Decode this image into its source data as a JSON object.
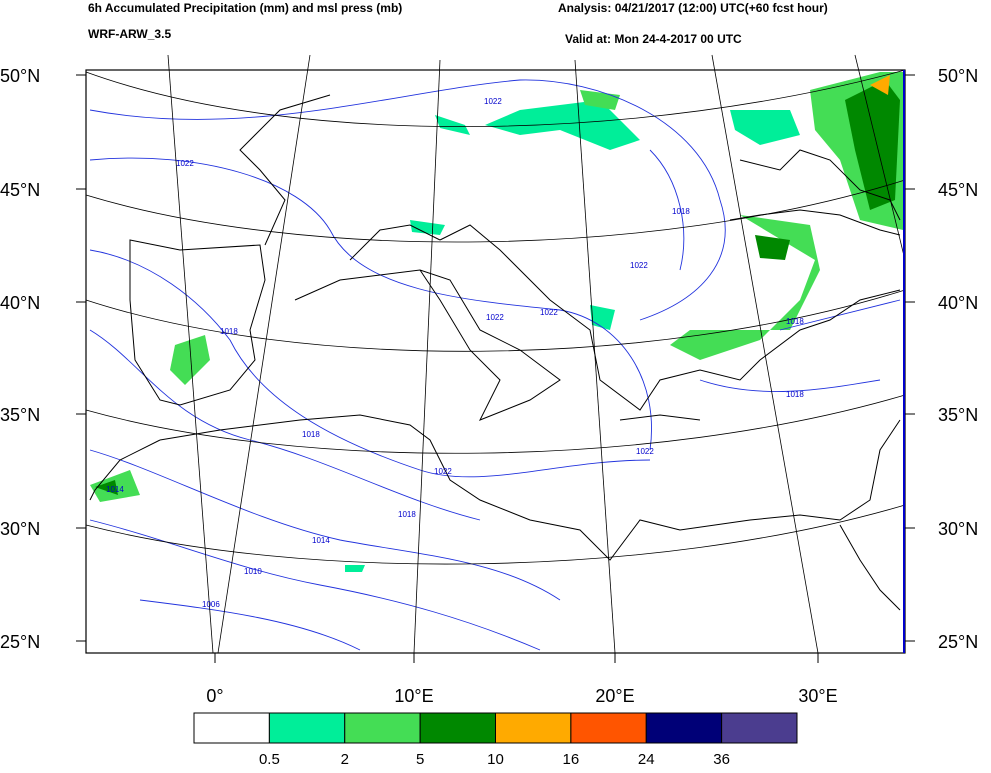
{
  "header": {
    "title": "6h Accumulated Precipitation (mm) and msl press (mb)",
    "model": "WRF-ARW_3.5",
    "analysis": "Analysis: 04/21/2017 (12:00) UTC(+60 fcst hour)",
    "valid": "Valid at: Mon 24-4-2017 00 UTC"
  },
  "map": {
    "lat_labels": [
      "50°N",
      "45°N",
      "40°N",
      "35°N",
      "30°N",
      "25°N"
    ],
    "lon_labels": [
      "0°",
      "10°E",
      "20°E",
      "30°E"
    ],
    "contour_labels": [
      "1022",
      "1022",
      "1022",
      "1022",
      "1022",
      "1022",
      "1022",
      "1018",
      "1018",
      "1018",
      "1018",
      "1018",
      "1018",
      "1014",
      "1014",
      "1010",
      "1006"
    ]
  },
  "legend": {
    "colors": [
      "#ffffff",
      "#00ee99",
      "#44dd55",
      "#008800",
      "#ffaa00",
      "#ff5500",
      "#000077",
      "#4b3d8f"
    ],
    "levels": [
      0.5,
      2,
      5,
      10,
      16,
      24,
      36
    ]
  }
}
